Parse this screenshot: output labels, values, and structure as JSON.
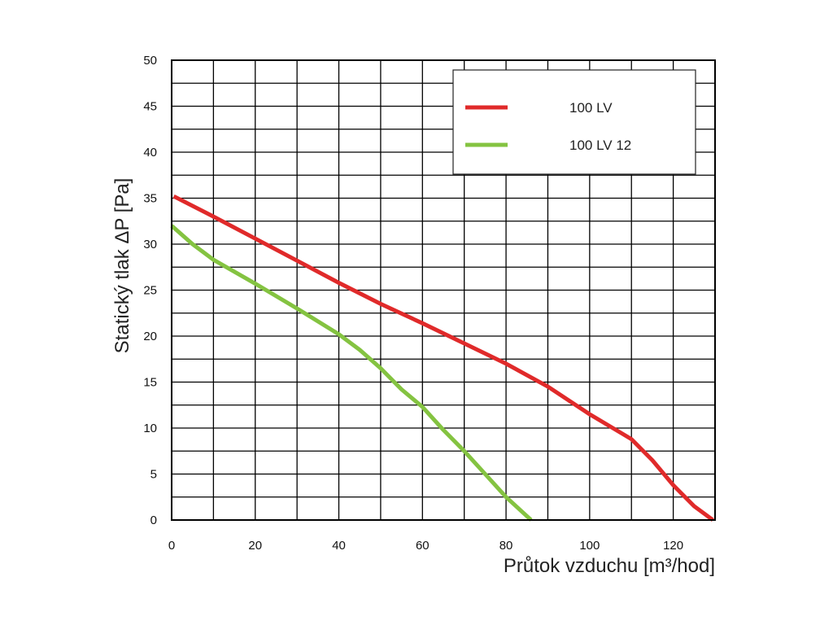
{
  "chart_data": {
    "type": "line",
    "xlabel": "Průtok vzduchu [m³/hod]",
    "ylabel": "Statický tlak  ΔP [Pa]",
    "xlim": [
      0,
      130
    ],
    "ylim": [
      0,
      50
    ],
    "x_ticks": [
      "0",
      "20",
      "40",
      "60",
      "80",
      "100",
      "120"
    ],
    "y_ticks": [
      "0",
      "5",
      "10",
      "15",
      "20",
      "25",
      "30",
      "35",
      "40",
      "45",
      "50"
    ],
    "grid": true,
    "legend_position": "top-right",
    "series": [
      {
        "name": "100 LV",
        "color": "#e02a2a",
        "points": [
          [
            0.5,
            35.2
          ],
          [
            10,
            33.0
          ],
          [
            20,
            30.6
          ],
          [
            30,
            28.2
          ],
          [
            40,
            25.8
          ],
          [
            50,
            23.5
          ],
          [
            60,
            21.4
          ],
          [
            70,
            19.2
          ],
          [
            80,
            17.0
          ],
          [
            90,
            14.5
          ],
          [
            100,
            11.5
          ],
          [
            110,
            8.8
          ],
          [
            115,
            6.5
          ],
          [
            120,
            3.8
          ],
          [
            125,
            1.5
          ],
          [
            129.5,
            0
          ]
        ]
      },
      {
        "name": "100 LV 12",
        "color": "#84c341",
        "points": [
          [
            0,
            32.0
          ],
          [
            5,
            30.0
          ],
          [
            10,
            28.3
          ],
          [
            20,
            25.7
          ],
          [
            30,
            23.0
          ],
          [
            40,
            20.2
          ],
          [
            45,
            18.5
          ],
          [
            50,
            16.5
          ],
          [
            55,
            14.2
          ],
          [
            60,
            12.3
          ],
          [
            65,
            9.8
          ],
          [
            70,
            7.5
          ],
          [
            75,
            5.0
          ],
          [
            80,
            2.5
          ],
          [
            86,
            0
          ]
        ]
      }
    ]
  }
}
